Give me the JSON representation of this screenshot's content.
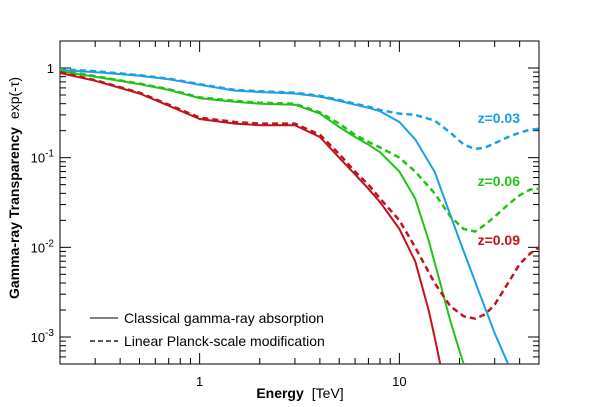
{
  "chart_data": {
    "type": "line",
    "xlabel_bold": "Energy",
    "xlabel_unit": "[TeV]",
    "ylabel_bold": "Gamma-ray Transparency",
    "ylabel_unit": "exp(-τ)",
    "xscale": "log",
    "yscale": "log",
    "xlim": [
      0.2,
      50
    ],
    "ylim": [
      0.0005,
      2
    ],
    "grid": false,
    "x_ticks": [
      {
        "value": 1,
        "label": "1"
      },
      {
        "value": 10,
        "label": "10"
      }
    ],
    "y_ticks": [
      {
        "value": 1,
        "base": "1",
        "exp": ""
      },
      {
        "value": 0.1,
        "base": "10",
        "exp": "-1"
      },
      {
        "value": 0.01,
        "base": "10",
        "exp": "-2"
      },
      {
        "value": 0.001,
        "base": "10",
        "exp": "-3"
      }
    ],
    "legend": {
      "placement": "bottom-left",
      "entries": [
        {
          "label": "Classical gamma-ray absorption",
          "style": "solid"
        },
        {
          "label": "Linear Planck-scale modification",
          "style": "dashed"
        }
      ]
    },
    "series": [
      {
        "name": "z=0.03",
        "color": "#1a9ee6",
        "solid": {
          "x": [
            0.2,
            0.3,
            0.5,
            0.7,
            1.0,
            1.5,
            2.0,
            3.0,
            4.0,
            5.0,
            6.0,
            7.0,
            8.0,
            10.0,
            12.0,
            15.0,
            20.0,
            25.0,
            30.0,
            35.0
          ],
          "y": [
            0.95,
            0.9,
            0.82,
            0.75,
            0.65,
            0.56,
            0.54,
            0.52,
            0.48,
            0.43,
            0.39,
            0.36,
            0.33,
            0.25,
            0.16,
            0.07,
            0.012,
            0.0032,
            0.0011,
            0.0005
          ]
        },
        "dashed": {
          "x": [
            0.2,
            0.3,
            0.5,
            0.7,
            1.0,
            1.5,
            2.0,
            3.0,
            4.0,
            5.0,
            6.0,
            7.0,
            8.0,
            10.0,
            12.0,
            15.0,
            18.0,
            21.0,
            24.0,
            27.0,
            30.0,
            35.0,
            40.0,
            45.0,
            50.0
          ],
          "y": [
            0.97,
            0.92,
            0.83,
            0.76,
            0.66,
            0.57,
            0.55,
            0.53,
            0.49,
            0.44,
            0.4,
            0.37,
            0.34,
            0.31,
            0.3,
            0.26,
            0.19,
            0.14,
            0.125,
            0.13,
            0.145,
            0.17,
            0.19,
            0.205,
            0.21
          ]
        }
      },
      {
        "name": "z=0.06",
        "color": "#22c21b",
        "solid": {
          "x": [
            0.2,
            0.3,
            0.5,
            0.7,
            1.0,
            1.5,
            2.0,
            3.0,
            4.0,
            5.0,
            6.0,
            7.0,
            8.0,
            10.0,
            12.0,
            14.0,
            16.0,
            18.0,
            20.0,
            21.0
          ],
          "y": [
            0.92,
            0.8,
            0.66,
            0.57,
            0.46,
            0.42,
            0.4,
            0.39,
            0.31,
            0.22,
            0.17,
            0.14,
            0.115,
            0.07,
            0.035,
            0.012,
            0.004,
            0.0015,
            0.0007,
            0.0005
          ]
        },
        "dashed": {
          "x": [
            0.2,
            0.3,
            0.5,
            0.7,
            1.0,
            1.5,
            2.0,
            3.0,
            4.0,
            5.0,
            6.0,
            7.0,
            8.0,
            10.0,
            12.0,
            15.0,
            18.0,
            21.0,
            24.0,
            27.0,
            30.0,
            35.0,
            40.0,
            45.0,
            50.0
          ],
          "y": [
            0.94,
            0.81,
            0.67,
            0.58,
            0.47,
            0.43,
            0.41,
            0.4,
            0.32,
            0.24,
            0.18,
            0.15,
            0.13,
            0.1,
            0.07,
            0.04,
            0.022,
            0.016,
            0.015,
            0.018,
            0.022,
            0.03,
            0.038,
            0.044,
            0.045
          ]
        }
      },
      {
        "name": "z=0.09",
        "color": "#c0141c",
        "solid": {
          "x": [
            0.2,
            0.3,
            0.5,
            0.7,
            1.0,
            1.5,
            2.0,
            3.0,
            4.0,
            5.0,
            6.0,
            7.0,
            8.0,
            10.0,
            12.0,
            14.0,
            15.0,
            16.0
          ],
          "y": [
            0.88,
            0.72,
            0.52,
            0.38,
            0.27,
            0.24,
            0.23,
            0.23,
            0.17,
            0.1,
            0.065,
            0.045,
            0.032,
            0.016,
            0.007,
            0.002,
            0.001,
            0.0005
          ]
        },
        "dashed": {
          "x": [
            0.2,
            0.3,
            0.5,
            0.7,
            1.0,
            1.5,
            2.0,
            3.0,
            4.0,
            5.0,
            6.0,
            7.0,
            8.0,
            10.0,
            12.0,
            15.0,
            18.0,
            21.0,
            24.0,
            27.0,
            30.0,
            35.0,
            40.0,
            45.0,
            50.0
          ],
          "y": [
            0.9,
            0.73,
            0.53,
            0.39,
            0.28,
            0.25,
            0.24,
            0.24,
            0.18,
            0.11,
            0.07,
            0.05,
            0.035,
            0.02,
            0.01,
            0.004,
            0.0022,
            0.0017,
            0.0016,
            0.0018,
            0.0023,
            0.004,
            0.0065,
            0.0085,
            0.01
          ]
        }
      }
    ]
  }
}
